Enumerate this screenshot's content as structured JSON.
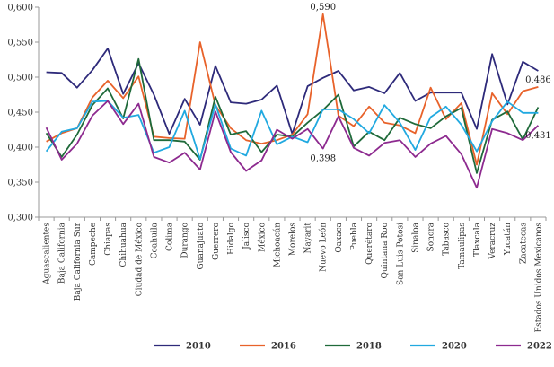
{
  "chart_data": {
    "type": "line",
    "categories": [
      "Aguascalientes",
      "Baja California",
      "Baja California Sur",
      "Campeche",
      "Chiapas",
      "Chihuahua",
      "Ciudad de México",
      "Coahuila",
      "Colima",
      "Durango",
      "Guanajuato",
      "Guerrero",
      "Hidalgo",
      "Jalisco",
      "México",
      "Michoacán",
      "Morelos",
      "Nayarit",
      "Nuevo León",
      "Oaxaca",
      "Puebla",
      "Querétaro",
      "Quintana Roo",
      "San Luis Potosí",
      "Sinaloa",
      "Sonora",
      "Tabasco",
      "Tamaulipas",
      "Tlaxcala",
      "Veracruz",
      "Yucatán",
      "Zacatecas",
      "Estados Unidos Mexicanos"
    ],
    "ylim": [
      0.3,
      0.6
    ],
    "yticks": [
      "0,300",
      "0,350",
      "0,400",
      "0,450",
      "0,500",
      "0,550",
      "0,600"
    ],
    "grid": false,
    "legend_position": "bottom",
    "series": [
      {
        "name": "2010",
        "color": "#2e2a7a",
        "values": [
          0.507,
          0.506,
          0.485,
          0.51,
          0.541,
          0.476,
          0.52,
          0.475,
          0.419,
          0.469,
          0.432,
          0.516,
          0.464,
          0.462,
          0.468,
          0.488,
          0.419,
          0.487,
          0.499,
          0.509,
          0.481,
          0.486,
          0.477,
          0.506,
          0.466,
          0.478,
          0.478,
          0.478,
          0.426,
          0.533,
          0.461,
          0.522,
          0.509
        ]
      },
      {
        "name": "2016",
        "color": "#e8622a",
        "values": [
          0.408,
          0.42,
          0.427,
          0.471,
          0.495,
          0.47,
          0.501,
          0.415,
          0.413,
          0.412,
          0.55,
          0.46,
          0.427,
          0.41,
          0.405,
          0.41,
          0.418,
          0.447,
          0.59,
          0.445,
          0.43,
          0.458,
          0.435,
          0.431,
          0.42,
          0.485,
          0.44,
          0.463,
          0.375,
          0.477,
          0.447,
          0.48,
          0.486
        ]
      },
      {
        "name": "2018",
        "color": "#1f6a3a",
        "values": [
          0.42,
          0.386,
          0.418,
          0.46,
          0.484,
          0.441,
          0.526,
          0.41,
          0.41,
          0.408,
          0.382,
          0.472,
          0.418,
          0.423,
          0.393,
          0.418,
          0.415,
          0.435,
          0.453,
          0.475,
          0.401,
          0.422,
          0.41,
          0.442,
          0.433,
          0.427,
          0.444,
          0.456,
          0.363,
          0.439,
          0.451,
          0.411,
          0.457
        ]
      },
      {
        "name": "2020",
        "color": "#21a9e0",
        "values": [
          0.394,
          0.422,
          0.427,
          0.465,
          0.466,
          0.442,
          0.446,
          0.392,
          0.4,
          0.452,
          0.383,
          0.461,
          0.398,
          0.388,
          0.452,
          0.404,
          0.415,
          0.407,
          0.454,
          0.454,
          0.44,
          0.42,
          0.46,
          0.435,
          0.396,
          0.443,
          0.458,
          0.432,
          0.394,
          0.437,
          0.465,
          0.449,
          0.449
        ]
      },
      {
        "name": "2022",
        "color": "#8d2a8f",
        "values": [
          0.428,
          0.382,
          0.405,
          0.445,
          0.466,
          0.433,
          0.462,
          0.386,
          0.378,
          0.392,
          0.368,
          0.451,
          0.393,
          0.366,
          0.381,
          0.425,
          0.412,
          0.426,
          0.398,
          0.444,
          0.399,
          0.388,
          0.406,
          0.41,
          0.386,
          0.405,
          0.416,
          0.39,
          0.342,
          0.426,
          0.42,
          0.41,
          0.431
        ]
      }
    ],
    "annotations": [
      {
        "series": "2016",
        "category": "Nuevo León",
        "text": "0,590",
        "position": "above"
      },
      {
        "series": "2022",
        "category": "Nuevo León",
        "text": "0,398",
        "position": "below"
      },
      {
        "series": "2016",
        "category": "Estados Unidos Mexicanos",
        "text": "0,486",
        "position": "above"
      },
      {
        "series": "2022",
        "category": "Estados Unidos Mexicanos",
        "text": "0,431",
        "position": "below"
      }
    ]
  }
}
